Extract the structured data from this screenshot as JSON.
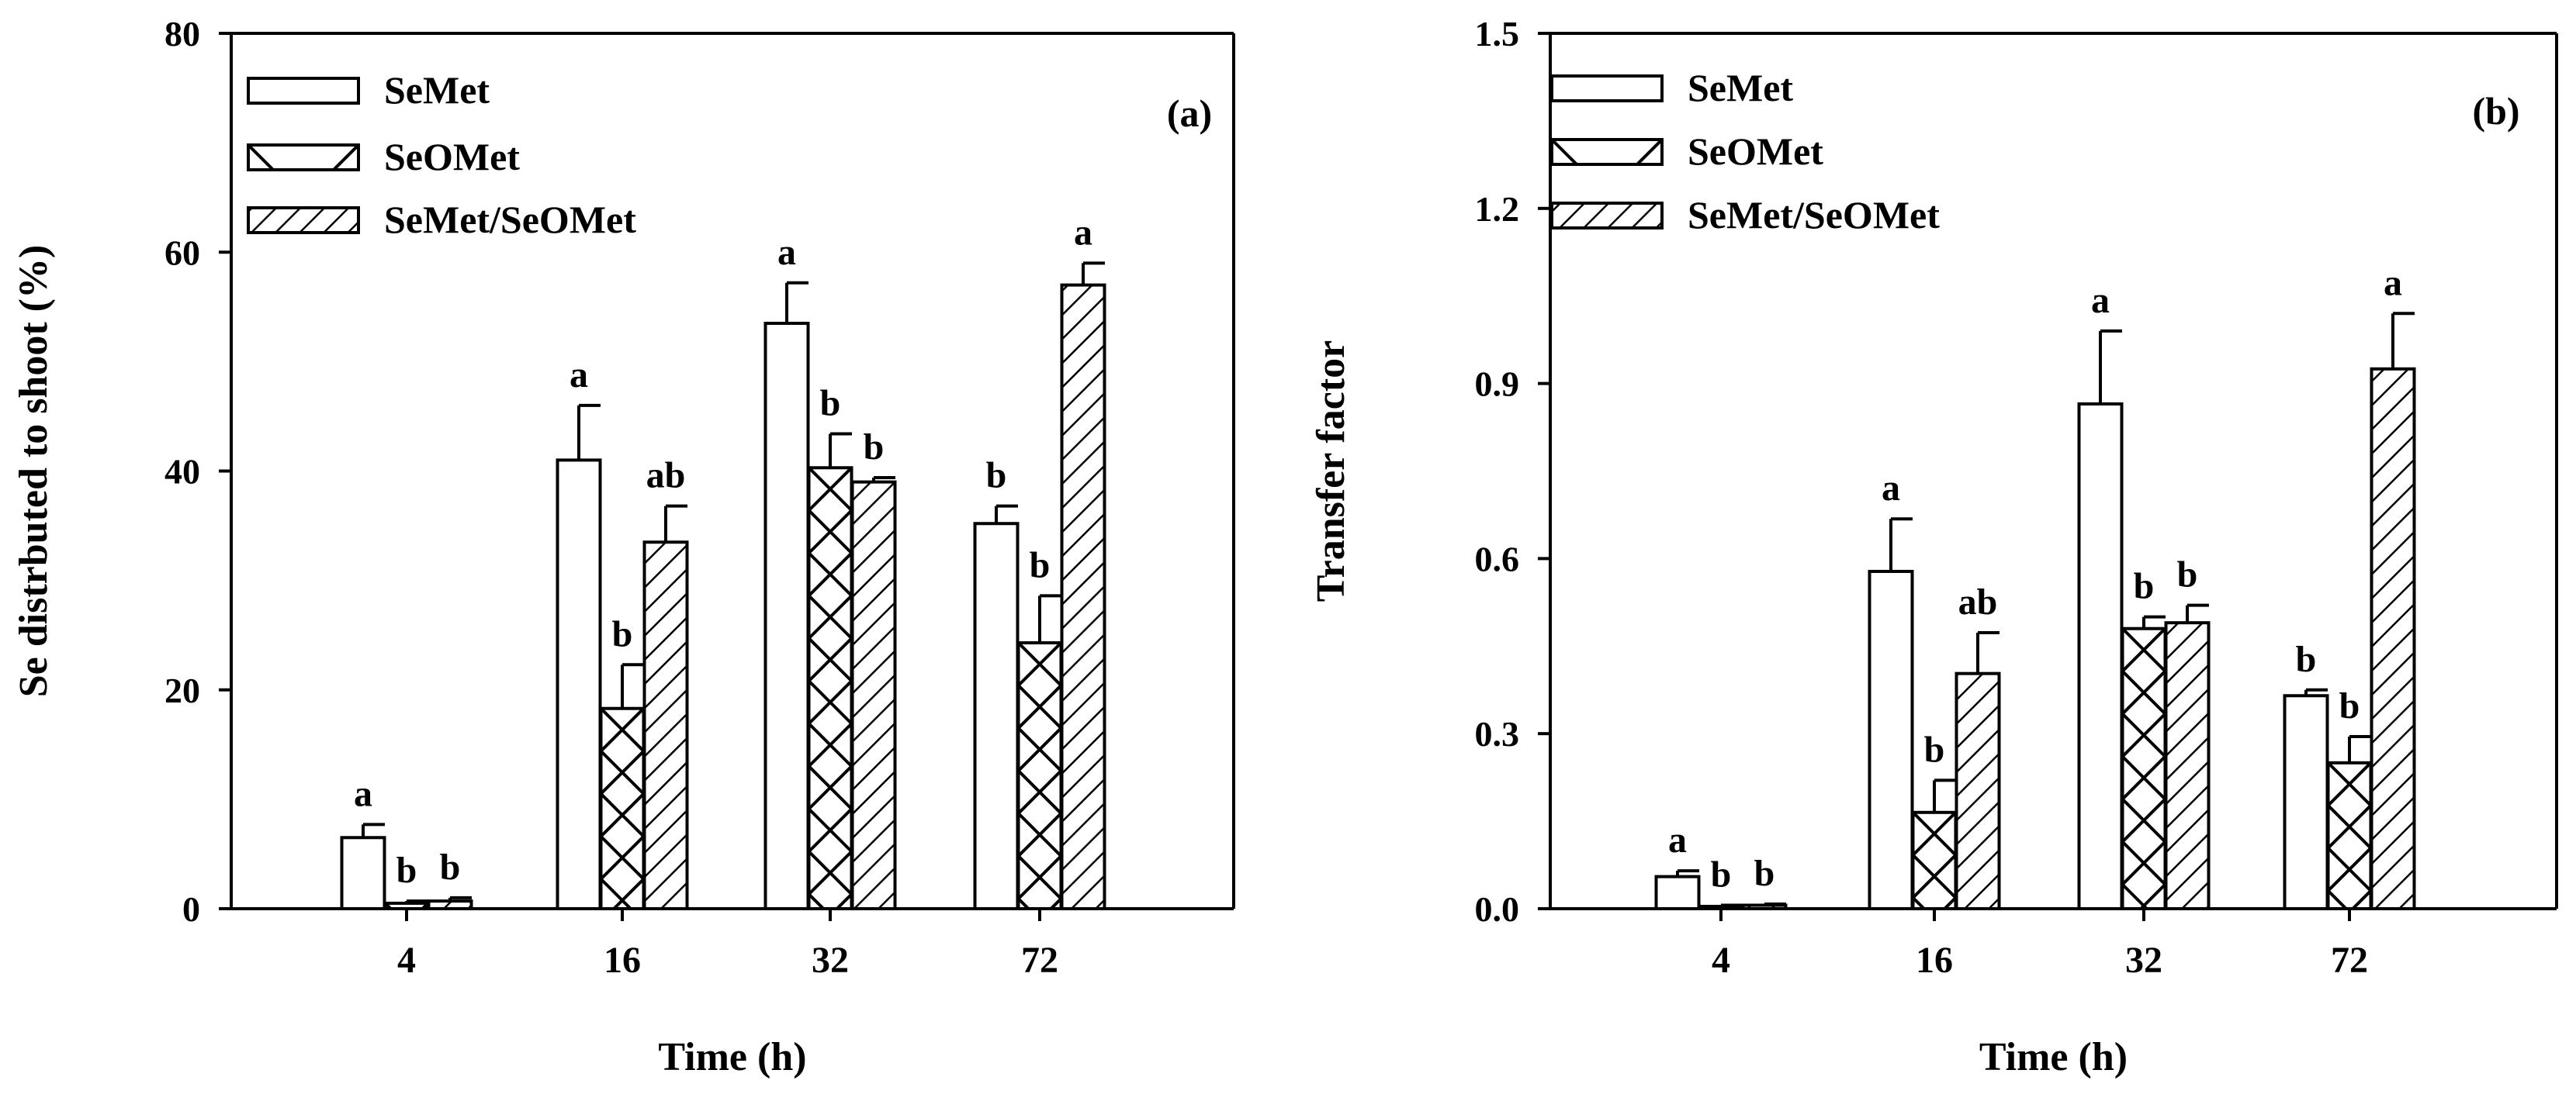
{
  "chart_data": [
    {
      "type": "bar",
      "panel_label": "(a)",
      "xlabel": "Time (h)",
      "ylabel": "Se distrbuted to shoot (%)",
      "categories": [
        "4",
        "16",
        "32",
        "72"
      ],
      "ylim": [
        0,
        80
      ],
      "yticks": [
        "0",
        "20",
        "40",
        "60",
        "80"
      ],
      "legend_position": "top-left",
      "series": [
        {
          "name": "SeMet",
          "pattern": "open",
          "values": [
            6.5,
            41,
            53.5,
            35.2
          ],
          "errors": [
            1.2,
            5,
            3.7,
            1.6
          ],
          "letters": [
            "a",
            "a",
            "a",
            "b"
          ]
        },
        {
          "name": "SeOMet",
          "pattern": "crosshatch",
          "values": [
            0.5,
            18.3,
            40.3,
            24.3
          ],
          "errors": [
            0.2,
            4,
            3.1,
            4.3
          ],
          "letters": [
            "b",
            "b",
            "b",
            "b"
          ]
        },
        {
          "name": "SeMet/SeOMet",
          "pattern": "diagonal",
          "values": [
            0.7,
            33.5,
            39,
            57
          ],
          "errors": [
            0.3,
            3.3,
            0.4,
            2
          ],
          "letters": [
            "b",
            "ab",
            "b",
            "a"
          ]
        }
      ]
    },
    {
      "type": "bar",
      "panel_label": "(b)",
      "xlabel": "Time (h)",
      "ylabel": "Transfer factor",
      "categories": [
        "4",
        "16",
        "32",
        "72"
      ],
      "ylim": [
        0,
        1.5
      ],
      "yticks": [
        "0.0",
        "0.3",
        "0.6",
        "0.9",
        "1.2",
        "1.5"
      ],
      "legend_position": "top-left",
      "series": [
        {
          "name": "SeMet",
          "pattern": "open",
          "values": [
            0.055,
            0.578,
            0.865,
            0.365
          ],
          "errors": [
            0.01,
            0.09,
            0.125,
            0.01
          ],
          "letters": [
            "a",
            "a",
            "a",
            "b"
          ]
        },
        {
          "name": "SeOMet",
          "pattern": "crosshatch",
          "values": [
            0.004,
            0.165,
            0.48,
            0.25
          ],
          "errors": [
            0.002,
            0.055,
            0.02,
            0.045
          ],
          "letters": [
            "b",
            "b",
            "b",
            "b"
          ]
        },
        {
          "name": "SeMet/SeOMet",
          "pattern": "diagonal",
          "values": [
            0.006,
            0.403,
            0.49,
            0.925
          ],
          "errors": [
            0.002,
            0.07,
            0.03,
            0.095
          ],
          "letters": [
            "b",
            "ab",
            "b",
            "a"
          ]
        }
      ]
    }
  ]
}
